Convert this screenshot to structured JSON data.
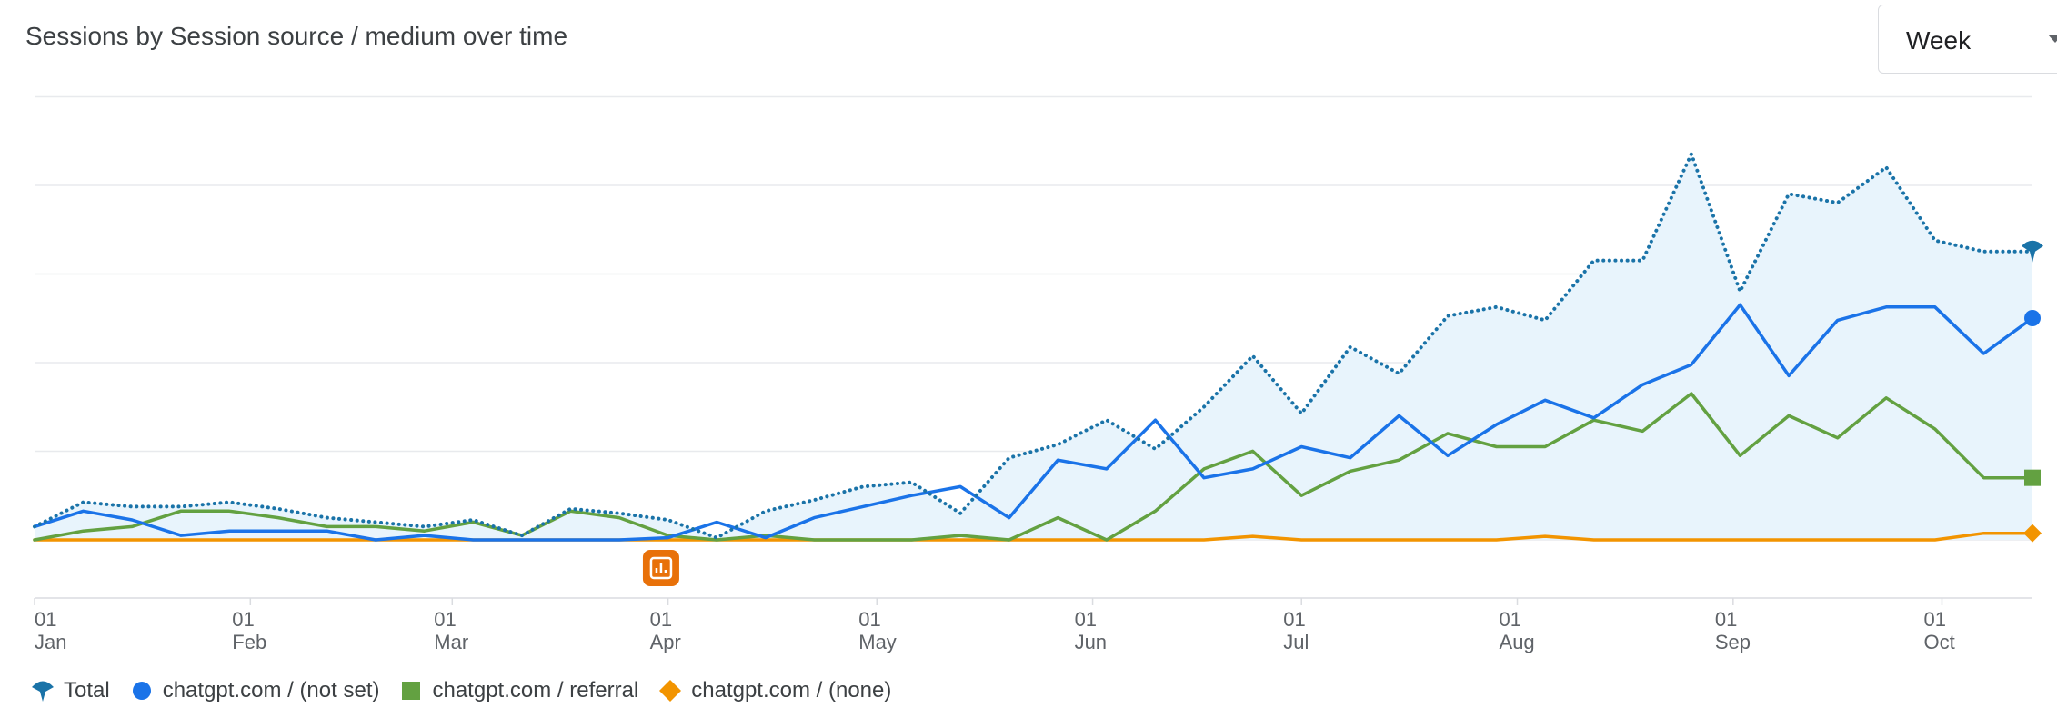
{
  "chart_data": {
    "type": "line",
    "title": "Sessions by Session source / medium over time",
    "period": "Week",
    "grid": true,
    "legend_position": "bottom-left",
    "ylim": [
      0,
      100
    ],
    "x": [
      "2024-01-01",
      "2024-01-08",
      "2024-01-15",
      "2024-01-22",
      "2024-01-29",
      "2024-02-05",
      "2024-02-12",
      "2024-02-19",
      "2024-02-26",
      "2024-03-04",
      "2024-03-11",
      "2024-03-18",
      "2024-03-25",
      "2024-04-01",
      "2024-04-08",
      "2024-04-15",
      "2024-04-22",
      "2024-04-29",
      "2024-05-06",
      "2024-05-13",
      "2024-05-20",
      "2024-05-27",
      "2024-06-03",
      "2024-06-10",
      "2024-06-17",
      "2024-06-24",
      "2024-07-01",
      "2024-07-08",
      "2024-07-15",
      "2024-07-22",
      "2024-07-29",
      "2024-08-05",
      "2024-08-12",
      "2024-08-19",
      "2024-08-26",
      "2024-09-02",
      "2024-09-09",
      "2024-09-16",
      "2024-09-23",
      "2024-09-30",
      "2024-10-07",
      "2024-10-14"
    ],
    "x_ticks": [
      {
        "day": "01",
        "month": "Jan",
        "at": "2024-01-01"
      },
      {
        "day": "01",
        "month": "Feb",
        "at": "2024-02-01"
      },
      {
        "day": "01",
        "month": "Mar",
        "at": "2024-03-01"
      },
      {
        "day": "01",
        "month": "Apr",
        "at": "2024-04-01"
      },
      {
        "day": "01",
        "month": "May",
        "at": "2024-05-01"
      },
      {
        "day": "01",
        "month": "Jun",
        "at": "2024-06-01"
      },
      {
        "day": "01",
        "month": "Jul",
        "at": "2024-07-01"
      },
      {
        "day": "01",
        "month": "Aug",
        "at": "2024-08-01"
      },
      {
        "day": "01",
        "month": "Sep",
        "at": "2024-09-01"
      },
      {
        "day": "01",
        "month": "Oct",
        "at": "2024-10-01"
      }
    ],
    "series": [
      {
        "name": "Total",
        "color": "#1a73a8",
        "style": "dotted",
        "marker": "pin",
        "area_fill": "#e8f4fc",
        "values": [
          3,
          8.5,
          7.5,
          7.5,
          8.5,
          7,
          5,
          4,
          3,
          4.5,
          1,
          7,
          6,
          4.5,
          0.5,
          6.5,
          9,
          12,
          13,
          6,
          18.5,
          21.5,
          27,
          20.5,
          30,
          41.5,
          28.5,
          43.5,
          37.5,
          50.5,
          52.5,
          49.5,
          63,
          63,
          87,
          56,
          78,
          76,
          84,
          67.5,
          65,
          65
        ]
      },
      {
        "name": "chatgpt.com / (not set)",
        "color": "#1a73e8",
        "style": "solid",
        "marker": "circle",
        "values": [
          3,
          6.5,
          4.5,
          1,
          2,
          2,
          2,
          0,
          1,
          0,
          0,
          0,
          0,
          0.5,
          4,
          0.5,
          5,
          7.5,
          10,
          12,
          5,
          18,
          16,
          27,
          14,
          16,
          21,
          18.5,
          28,
          19,
          26,
          31.5,
          27.5,
          35,
          39.5,
          53,
          37,
          49.5,
          52.5,
          52.5,
          42,
          50
        ]
      },
      {
        "name": "chatgpt.com / referral",
        "color": "#63a141",
        "style": "solid",
        "marker": "square",
        "values": [
          0,
          2,
          3,
          6.5,
          6.5,
          5,
          3,
          3,
          2,
          4,
          1,
          6.5,
          5,
          1,
          0,
          1,
          0,
          0,
          0,
          1,
          0,
          5,
          0,
          6.5,
          16,
          20,
          10,
          15.5,
          18,
          24,
          21,
          21,
          27,
          24.5,
          33,
          19,
          28,
          23,
          32,
          25,
          14,
          14
        ]
      },
      {
        "name": "chatgpt.com / (none)",
        "color": "#f29400",
        "style": "solid",
        "marker": "diamond",
        "values": [
          0,
          0,
          0,
          0,
          0,
          0,
          0,
          0,
          0,
          0,
          0,
          0,
          0,
          0,
          0,
          0,
          0,
          0,
          0,
          0,
          0,
          0,
          0,
          0,
          0,
          0.8,
          0,
          0,
          0,
          0,
          0,
          0.8,
          0,
          0,
          0,
          0,
          0,
          0,
          0,
          0,
          1.5,
          1.5
        ]
      }
    ],
    "annotation": {
      "icon": "annotation-icon",
      "at": "2024-03-31",
      "color": "#e8710a"
    }
  }
}
